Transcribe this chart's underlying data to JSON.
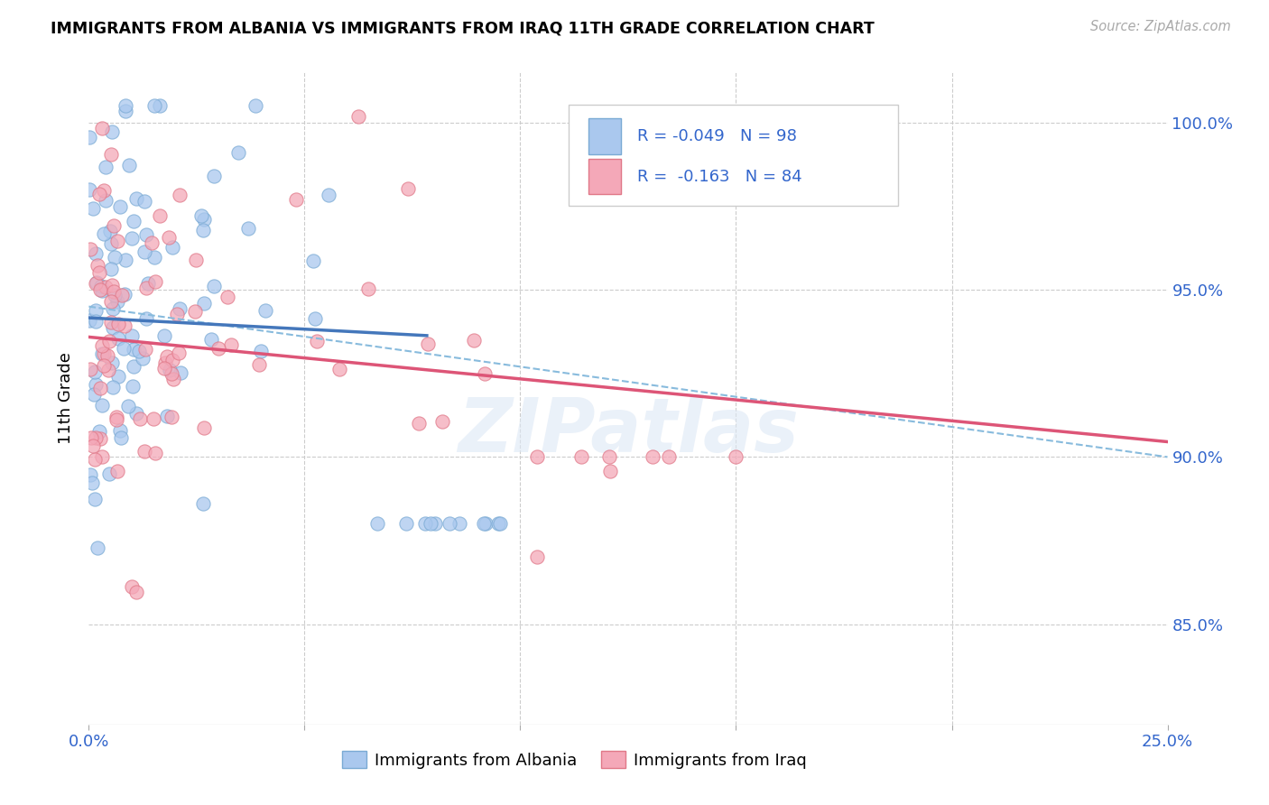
{
  "title": "IMMIGRANTS FROM ALBANIA VS IMMIGRANTS FROM IRAQ 11TH GRADE CORRELATION CHART",
  "source": "Source: ZipAtlas.com",
  "ylabel": "11th Grade",
  "ytick_values": [
    85.0,
    90.0,
    95.0,
    100.0
  ],
  "xmin": 0.0,
  "xmax": 25.0,
  "ymin": 82.0,
  "ymax": 101.5,
  "albania_color": "#aac8ee",
  "albania_edge": "#7aaad4",
  "iraq_color": "#f4a8b8",
  "iraq_edge": "#e07888",
  "albania_R": -0.049,
  "albania_N": 98,
  "iraq_R": -0.163,
  "iraq_N": 84,
  "legend_text_color": "#3366cc",
  "trendline_albania_color": "#4477bb",
  "trendline_iraq_color": "#dd5577",
  "trendline_dashed_color": "#88bbdd",
  "watermark": "ZIPatlas",
  "legend_R_label": "R = ",
  "legend_N_label": "N = "
}
